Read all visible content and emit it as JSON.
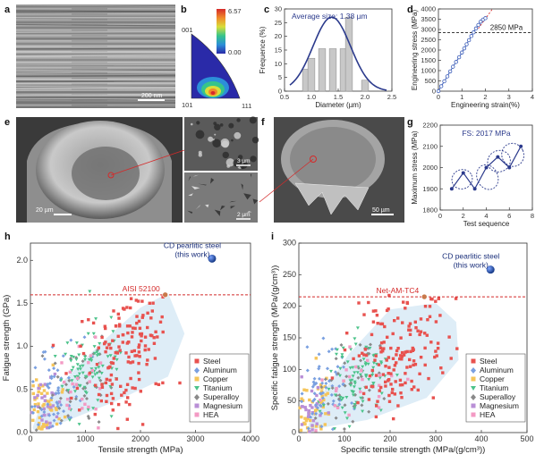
{
  "figure": {
    "panels": {
      "a": {
        "label": "a",
        "scale_bar": "200 nm"
      },
      "b": {
        "label": "b",
        "colorbar_max": "6.57",
        "colorbar_min": "0.00",
        "corners": [
          "001",
          "101",
          "111"
        ]
      },
      "c": {
        "label": "c"
      },
      "d": {
        "label": "d"
      },
      "e": {
        "label": "e",
        "scale_main": "20 µm",
        "scale_inset1": "3 µm",
        "scale_inset2": "2 µm"
      },
      "f": {
        "label": "f",
        "scale_bar": "50 µm"
      },
      "g": {
        "label": "g"
      },
      "h": {
        "label": "h"
      },
      "i": {
        "label": "i"
      }
    }
  },
  "chart_data": [
    {
      "id": "c",
      "type": "bar",
      "title": "Average size: 1.38 µm",
      "xlabel": "Diameter (µm)",
      "ylabel": "Frequence (%)",
      "xlim": [
        0.5,
        2.5
      ],
      "ylim": [
        0,
        30
      ],
      "xticks": [
        "0.5",
        "1.0",
        "1.5",
        "2.0",
        "2.5"
      ],
      "yticks": [
        "0",
        "5",
        "10",
        "15",
        "20",
        "25",
        "30"
      ],
      "bins": [
        0.9,
        1.0,
        1.2,
        1.4,
        1.6,
        1.7,
        2.0
      ],
      "values": [
        8,
        12,
        15.5,
        15.5,
        15.5,
        27,
        4
      ],
      "bin_width": 0.13,
      "fit_curve": {
        "mean": 1.38,
        "sigma": 0.35,
        "peak": 27
      }
    },
    {
      "id": "d",
      "type": "line",
      "xlabel": "Engineering strain(%)",
      "ylabel": "Engineering stress (MPa)",
      "xlim": [
        0,
        4
      ],
      "ylim": [
        0,
        4000
      ],
      "xticks": [
        "0",
        "1",
        "2",
        "3",
        "4"
      ],
      "yticks": [
        "0",
        "500",
        "1000",
        "1500",
        "2000",
        "2500",
        "3000",
        "3500",
        "4000"
      ],
      "annotation": "2850 MPa",
      "hline": 2850,
      "x": [
        0.0,
        0.12,
        0.25,
        0.38,
        0.5,
        0.62,
        0.75,
        0.88,
        1.0,
        1.1,
        1.2,
        1.3,
        1.4,
        1.5,
        1.6,
        1.7,
        1.8,
        1.9,
        2.0
      ],
      "y": [
        0,
        240,
        480,
        720,
        960,
        1190,
        1420,
        1650,
        1880,
        2080,
        2280,
        2480,
        2680,
        2860,
        3050,
        3220,
        3380,
        3480,
        3550
      ]
    },
    {
      "id": "g",
      "type": "scatter",
      "title": "FS: 2017 MPa",
      "xlabel": "Test sequence",
      "ylabel": "Maximum stress (MPa)",
      "xlim": [
        0,
        8
      ],
      "ylim": [
        1800,
        2200
      ],
      "xticks": [
        "0",
        "2",
        "4",
        "6",
        "8"
      ],
      "yticks": [
        "1800",
        "1900",
        "2000",
        "2100",
        "2200"
      ],
      "x": [
        1,
        2,
        3,
        4,
        5,
        6,
        7
      ],
      "y": [
        1900,
        1975,
        1900,
        2000,
        2050,
        2000,
        2100
      ]
    },
    {
      "id": "h",
      "type": "scatter",
      "xlabel": "Tensile strength (MPa)",
      "ylabel": "Fatigue strength (GPa)",
      "xlim": [
        0,
        4000
      ],
      "ylim": [
        0,
        2.2
      ],
      "xticks": [
        "0",
        "1000",
        "2000",
        "3000",
        "4000"
      ],
      "yticks": [
        "0.0",
        "0.5",
        "1.0",
        "1.5",
        "2.0"
      ],
      "highlight": {
        "label": "CD pearlitic steel",
        "sublabel": "(this work)",
        "x": 3300,
        "y": 2.02
      },
      "reference": {
        "label": "AISI 52100",
        "x": 2450,
        "y": 1.6
      },
      "legend": [
        "Steel",
        "Aluminum",
        "Copper",
        "Titanium",
        "Superalloy",
        "Magnesium",
        "HEA"
      ]
    },
    {
      "id": "i",
      "type": "scatter",
      "xlabel": "Specific tensile strength (MPa/(g/cm³))",
      "ylabel": "Specific fatigue strength (MPa/(g/cm³))",
      "xlim": [
        0,
        500
      ],
      "ylim": [
        0,
        300
      ],
      "xticks": [
        "0",
        "100",
        "200",
        "300",
        "400",
        "500"
      ],
      "yticks": [
        "0",
        "50",
        "100",
        "150",
        "200",
        "250",
        "300"
      ],
      "highlight": {
        "label": "CD pearlitic steel",
        "sublabel": "(this work)",
        "x": 420,
        "y": 258
      },
      "reference": {
        "label": "Net-AM-TC4",
        "x": 275,
        "y": 215
      },
      "legend": [
        "Steel",
        "Aluminum",
        "Copper",
        "Titanium",
        "Superalloy",
        "Magnesium",
        "HEA"
      ]
    }
  ],
  "legend_colors": {
    "Steel": "#e8524f",
    "Aluminum": "#7aa0e0",
    "Copper": "#f5c55a",
    "Titanium": "#4cc38a",
    "Superalloy": "#8a8a8a",
    "Magnesium": "#b98fd6",
    "HEA": "#f39ac4"
  },
  "colors": {
    "fit_curve": "#2b3a8c",
    "bars": "#c8c8c8",
    "highlight_point": "#1f4fa8",
    "ref_line": "#d42a2a",
    "envelope": "#d6e8f5",
    "stress_line": "#3a5cb8"
  }
}
